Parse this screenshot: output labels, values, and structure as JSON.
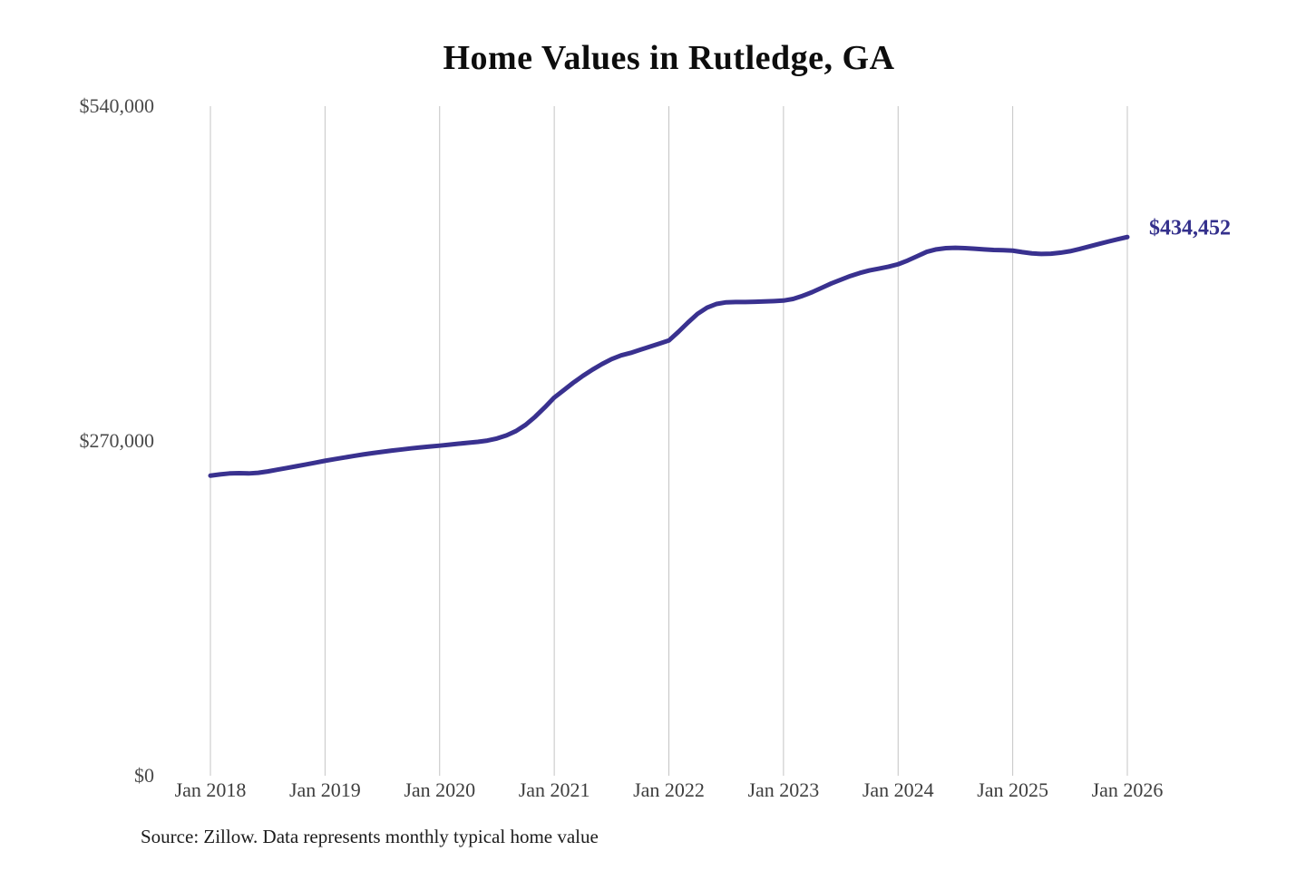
{
  "title": "Home Values in Rutledge, GA",
  "source_note": "Source: Zillow. Data represents monthly typical home value",
  "end_label": "$434,452",
  "colors": {
    "line": "#39318f",
    "grid": "#c4c4c4",
    "end_label": "#34308c",
    "background": "#ffffff"
  },
  "y_axis": {
    "ticks": [
      {
        "label": "$540,000",
        "value": 540000
      },
      {
        "label": "$270,000",
        "value": 270000
      },
      {
        "label": "$0",
        "value": 0
      }
    ]
  },
  "x_axis": {
    "ticks": [
      "Jan 2018",
      "Jan 2019",
      "Jan 2020",
      "Jan 2021",
      "Jan 2022",
      "Jan 2023",
      "Jan 2024",
      "Jan 2025",
      "Jan 2026"
    ]
  },
  "chart_data": {
    "type": "line",
    "title": "Home Values in Rutledge, GA",
    "xlabel": "",
    "ylabel": "",
    "ylim": [
      0,
      540000
    ],
    "x_start": "Jan 2018",
    "x_end": "Jan 2026",
    "x_interval": "monthly",
    "grid": "vertical-yearly",
    "legend": false,
    "final_value": 434452,
    "series": [
      {
        "name": "Typical home value",
        "values": [
          242000,
          243000,
          243800,
          244000,
          243800,
          244300,
          245400,
          246800,
          248200,
          249600,
          251000,
          252500,
          254000,
          255300,
          256600,
          257900,
          259100,
          260200,
          261200,
          262200,
          263100,
          264000,
          264800,
          265500,
          266200,
          267000,
          267800,
          268500,
          269300,
          270300,
          272000,
          274500,
          278000,
          283000,
          289500,
          297000,
          305000,
          311000,
          317000,
          322500,
          327500,
          332000,
          336000,
          339000,
          341000,
          343500,
          346000,
          348500,
          351000,
          358000,
          365500,
          372500,
          377500,
          380500,
          381800,
          382000,
          382000,
          382200,
          382500,
          382800,
          383200,
          384500,
          387000,
          390000,
          393500,
          397000,
          400000,
          403000,
          405500,
          407500,
          409000,
          410500,
          412500,
          415500,
          419000,
          422500,
          424500,
          425500,
          425800,
          425500,
          425000,
          424500,
          424000,
          423800,
          423500,
          422300,
          421300,
          420800,
          421000,
          421800,
          423000,
          424800,
          426800,
          428800,
          430800,
          432700,
          434452
        ]
      }
    ]
  }
}
